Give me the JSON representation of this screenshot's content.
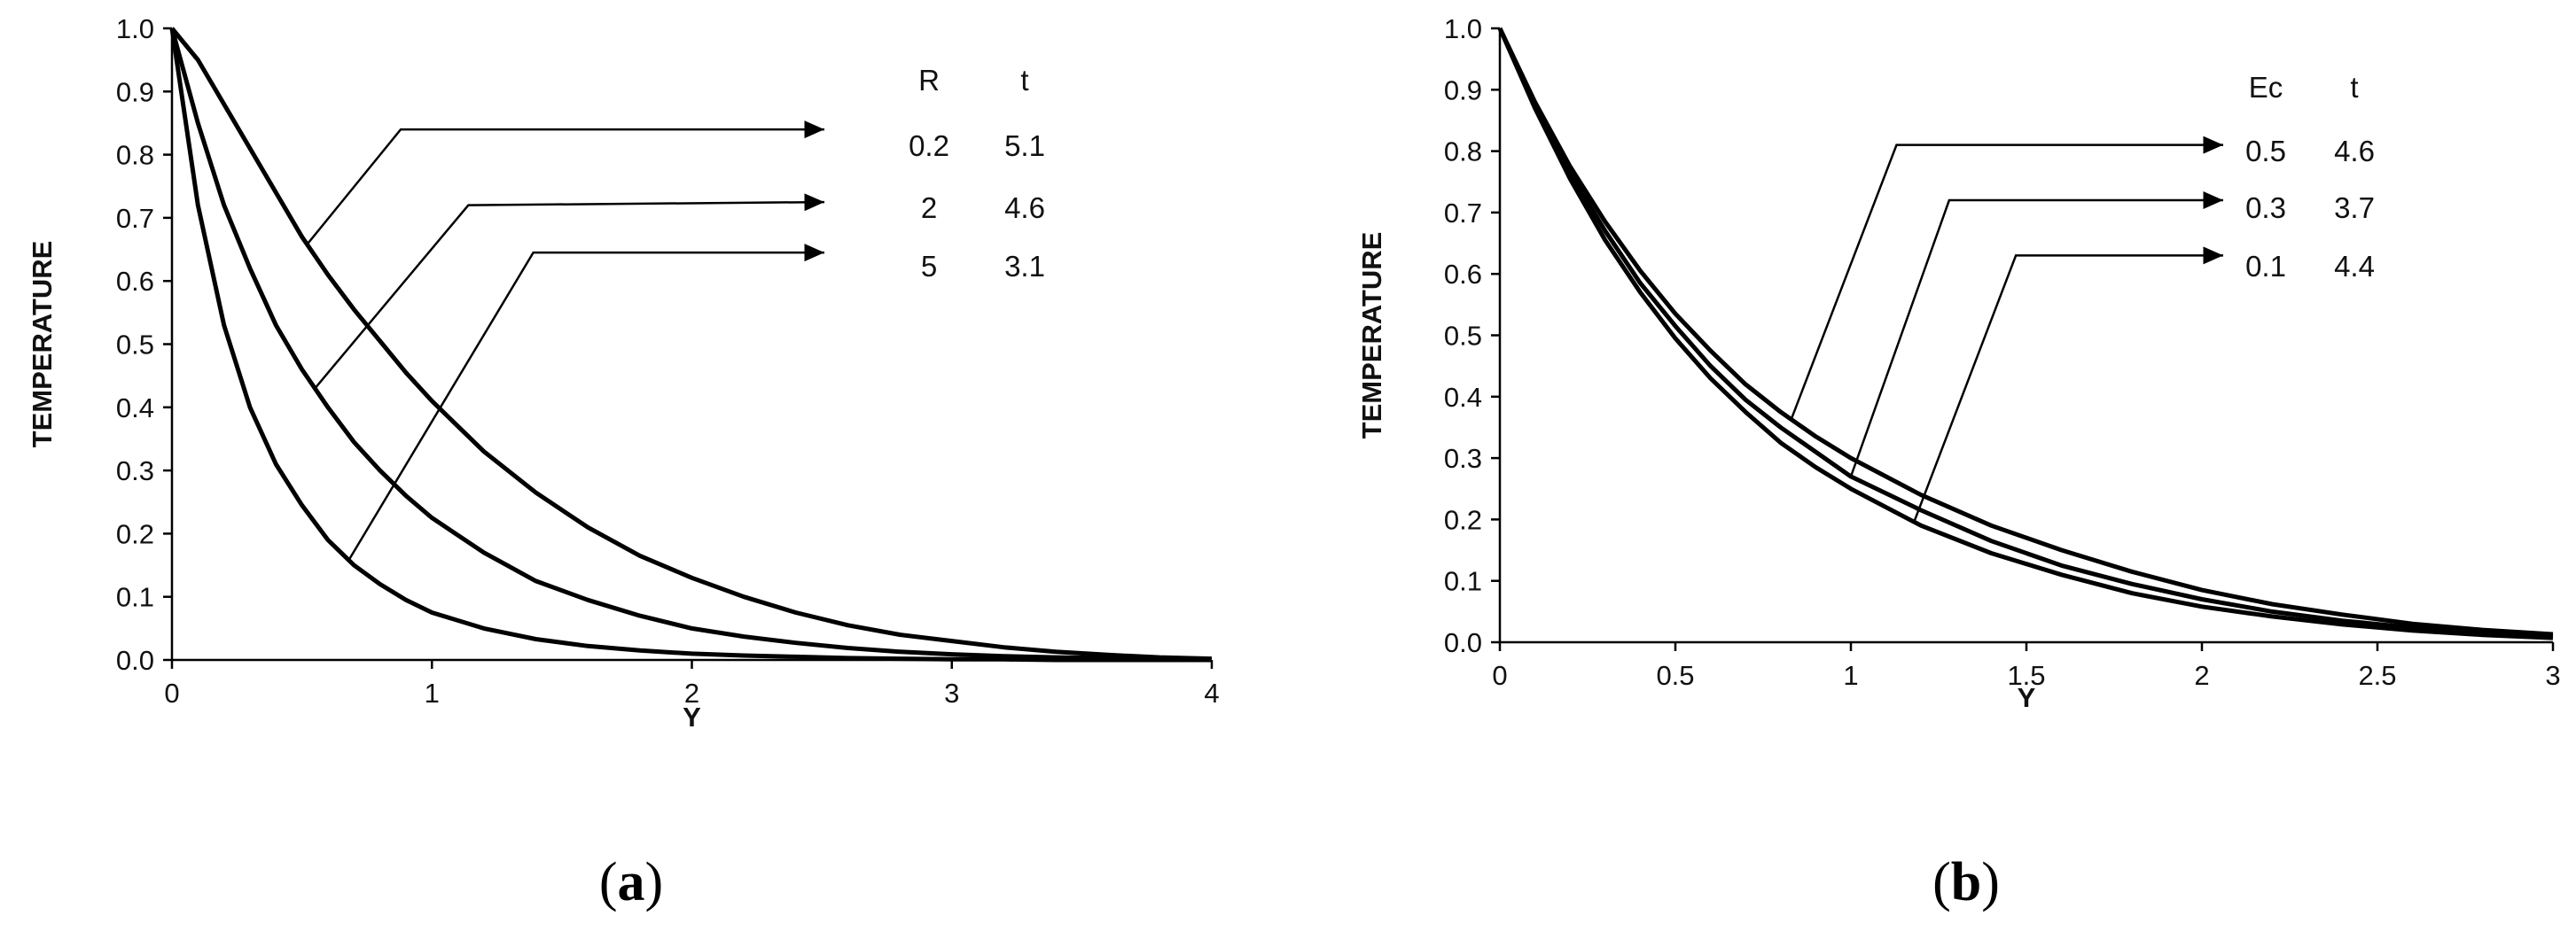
{
  "chart_data": [
    {
      "type": "line",
      "panel_label": "a",
      "xlabel": "Y",
      "ylabel": "TEMPERATURE",
      "xlim": [
        0,
        4
      ],
      "ylim": [
        0,
        1
      ],
      "x_ticks": [
        "0",
        "1",
        "2",
        "3",
        "4"
      ],
      "y_ticks": [
        "0.0",
        "0.1",
        "0.2",
        "0.3",
        "0.4",
        "0.5",
        "0.6",
        "0.7",
        "0.8",
        "0.9",
        "1.0"
      ],
      "grid": false,
      "legend_table": {
        "headers": [
          "R",
          "t"
        ],
        "rows": [
          [
            "0.2",
            "5.1"
          ],
          [
            "2",
            "4.6"
          ],
          [
            "5",
            "3.1"
          ]
        ]
      },
      "x": [
        0,
        0.1,
        0.2,
        0.3,
        0.4,
        0.5,
        0.6,
        0.7,
        0.8,
        0.9,
        1.0,
        1.2,
        1.4,
        1.6,
        1.8,
        2.0,
        2.2,
        2.4,
        2.6,
        2.8,
        3.0,
        3.2,
        3.4,
        3.6,
        3.8,
        4.0
      ],
      "series": [
        {
          "values": [
            1.0,
            0.95,
            0.88,
            0.81,
            0.74,
            0.67,
            0.61,
            0.555,
            0.505,
            0.455,
            0.41,
            0.33,
            0.265,
            0.21,
            0.165,
            0.13,
            0.1,
            0.075,
            0.055,
            0.04,
            0.03,
            0.02,
            0.013,
            0.008,
            0.004,
            0.002
          ]
        },
        {
          "values": [
            1.0,
            0.85,
            0.72,
            0.62,
            0.53,
            0.46,
            0.4,
            0.345,
            0.3,
            0.26,
            0.225,
            0.17,
            0.125,
            0.095,
            0.07,
            0.05,
            0.037,
            0.027,
            0.019,
            0.013,
            0.009,
            0.006,
            0.004,
            0.003,
            0.002,
            0.001
          ]
        },
        {
          "values": [
            1.0,
            0.72,
            0.53,
            0.4,
            0.31,
            0.245,
            0.19,
            0.15,
            0.12,
            0.095,
            0.075,
            0.05,
            0.033,
            0.022,
            0.015,
            0.01,
            0.007,
            0.005,
            0.003,
            0.002,
            0.001,
            0.001,
            0,
            0,
            0,
            0
          ]
        }
      ]
    },
    {
      "type": "line",
      "panel_label": "b",
      "xlabel": "Y",
      "ylabel": "TEMPERATURE",
      "xlim": [
        0,
        3
      ],
      "ylim": [
        0,
        1
      ],
      "x_ticks": [
        "0",
        "0.5",
        "1",
        "1.5",
        "2",
        "2.5",
        "3"
      ],
      "y_ticks": [
        "0.0",
        "0.1",
        "0.2",
        "0.3",
        "0.4",
        "0.5",
        "0.6",
        "0.7",
        "0.8",
        "0.9",
        "1.0"
      ],
      "grid": false,
      "legend_table": {
        "headers": [
          "Ec",
          "t"
        ],
        "rows": [
          [
            "0.5",
            "4.6"
          ],
          [
            "0.3",
            "3.7"
          ],
          [
            "0.1",
            "4.4"
          ]
        ]
      },
      "x": [
        0,
        0.1,
        0.2,
        0.3,
        0.4,
        0.5,
        0.6,
        0.7,
        0.8,
        0.9,
        1.0,
        1.2,
        1.4,
        1.6,
        1.8,
        2.0,
        2.2,
        2.4,
        2.6,
        2.8,
        3.0
      ],
      "series": [
        {
          "values": [
            1.0,
            0.88,
            0.775,
            0.685,
            0.605,
            0.535,
            0.475,
            0.42,
            0.375,
            0.335,
            0.3,
            0.24,
            0.19,
            0.15,
            0.115,
            0.085,
            0.062,
            0.045,
            0.03,
            0.02,
            0.013
          ]
        },
        {
          "values": [
            1.0,
            0.875,
            0.765,
            0.67,
            0.585,
            0.515,
            0.45,
            0.395,
            0.35,
            0.31,
            0.27,
            0.215,
            0.165,
            0.125,
            0.095,
            0.07,
            0.05,
            0.035,
            0.024,
            0.015,
            0.01
          ]
        },
        {
          "values": [
            1.0,
            0.87,
            0.755,
            0.655,
            0.57,
            0.495,
            0.43,
            0.375,
            0.325,
            0.285,
            0.25,
            0.19,
            0.145,
            0.11,
            0.08,
            0.058,
            0.042,
            0.029,
            0.019,
            0.012,
            0.007
          ]
        }
      ]
    }
  ]
}
